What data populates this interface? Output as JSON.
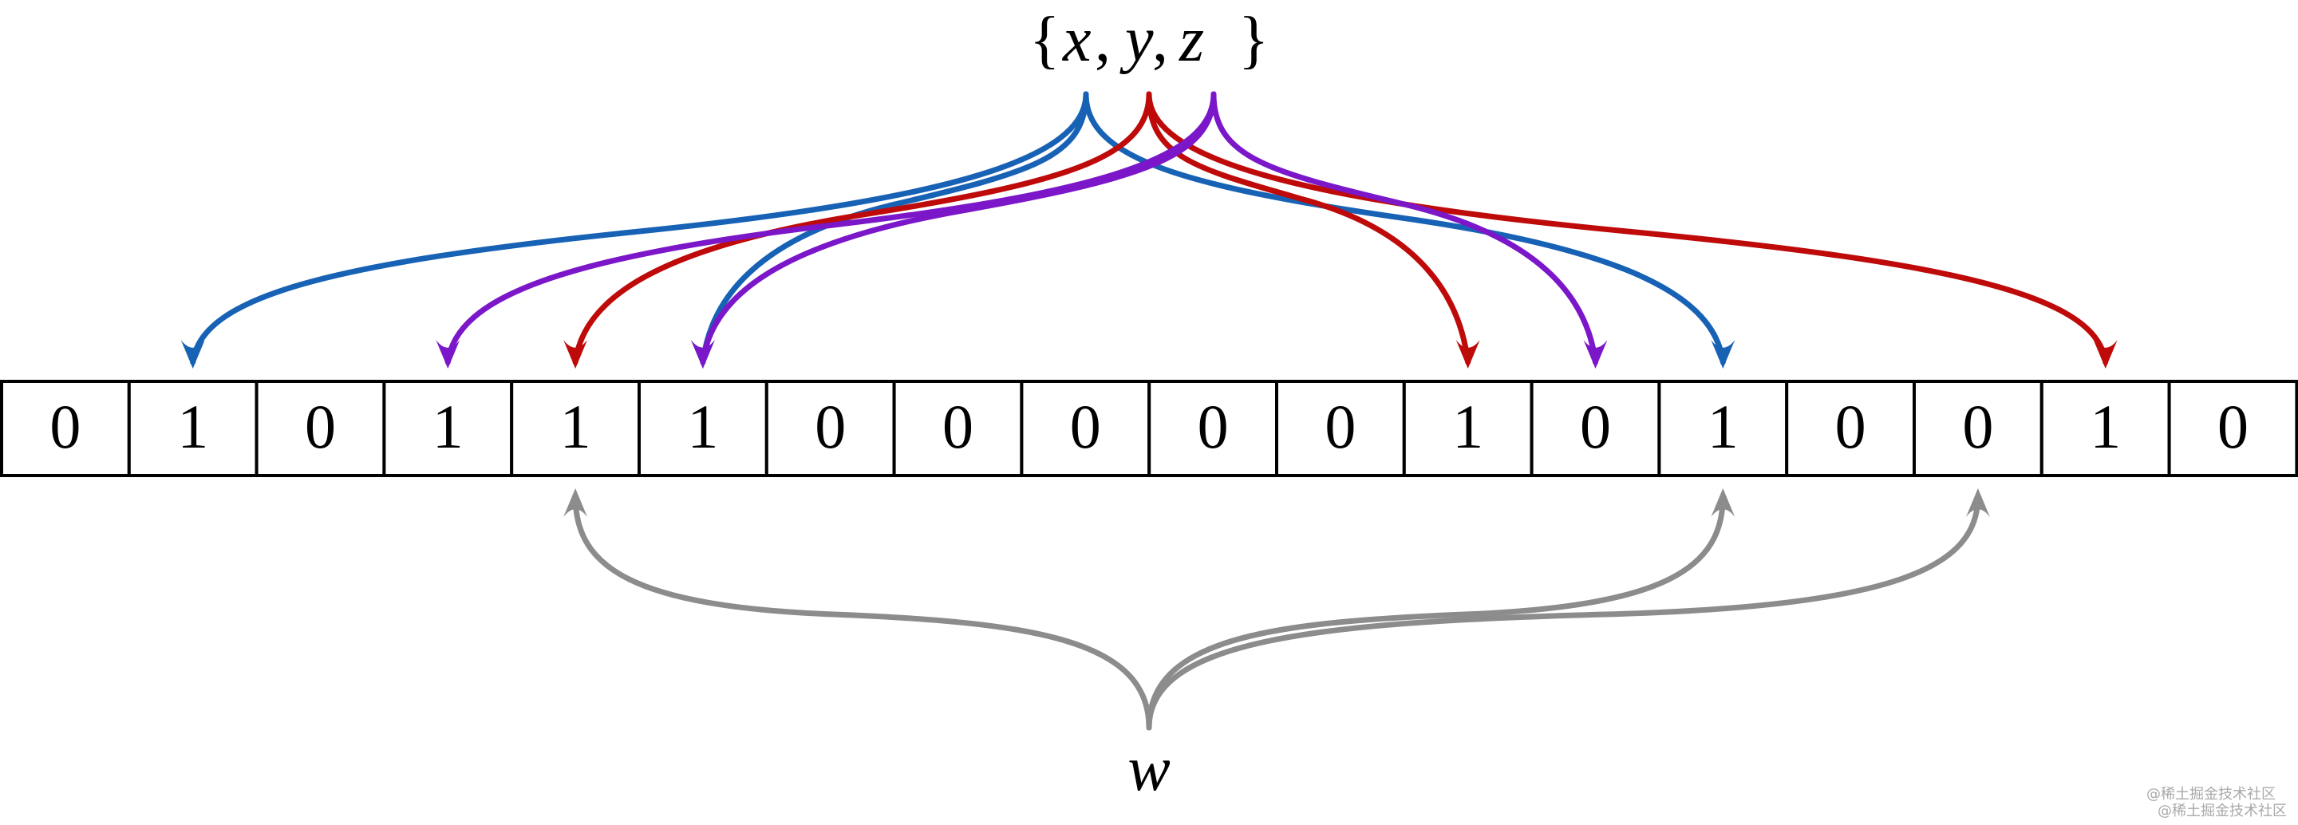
{
  "set_label": {
    "open": "{",
    "x": "x",
    "comma1": ",",
    "y": "y",
    "comma2": ",",
    "z": "z",
    "close": "}"
  },
  "query_label": "w",
  "bits": [
    0,
    1,
    0,
    1,
    1,
    1,
    0,
    0,
    0,
    0,
    0,
    1,
    0,
    1,
    0,
    0,
    1,
    0
  ],
  "colors": {
    "x": "#1762b5",
    "y": "#bf0a0a",
    "z": "#7b17c9",
    "w": "#8c8c8c"
  },
  "hash_targets": {
    "x": [
      1,
      5,
      13
    ],
    "y": [
      4,
      11,
      16
    ],
    "z": [
      3,
      5,
      12
    ],
    "w": [
      4,
      13,
      15
    ]
  },
  "watermark": [
    "@稀土掘金技术社区",
    "@稀土掘金技术社区"
  ]
}
